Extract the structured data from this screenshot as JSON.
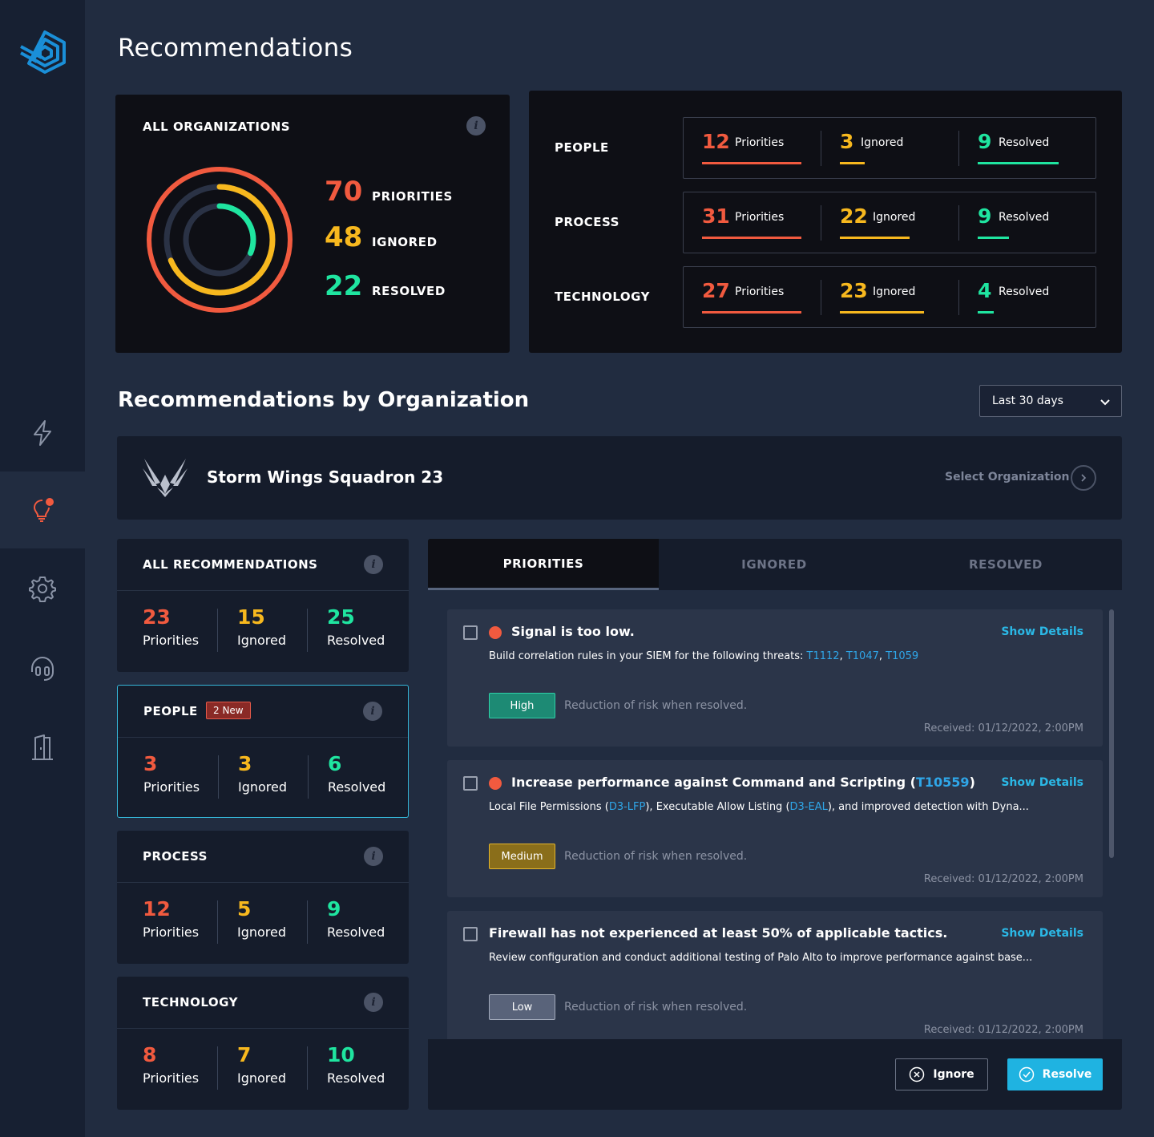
{
  "page": {
    "title": "Recommendations"
  },
  "colors": {
    "priorities": "#f15a3f",
    "ignored": "#f7b81e",
    "resolved": "#1fe5a0",
    "accent": "#1fb3e1"
  },
  "sidebar": {
    "items": [
      {
        "icon": "lightning-icon",
        "active": false
      },
      {
        "icon": "lightbulb-icon",
        "active": true
      },
      {
        "icon": "gear-icon",
        "active": false
      },
      {
        "icon": "headset-icon",
        "active": false
      },
      {
        "icon": "door-exit-icon",
        "active": false
      }
    ]
  },
  "all_orgs": {
    "title": "ALL ORGANIZATIONS",
    "priorities": {
      "value": "70",
      "label": "PRIORITIES"
    },
    "ignored": {
      "value": "48",
      "label": "IGNORED"
    },
    "resolved": {
      "value": "22",
      "label": "RESOLVED"
    }
  },
  "categories": [
    {
      "name": "PEOPLE",
      "priorities": "12",
      "ignored": "3",
      "resolved": "9",
      "p_frac": 1.0,
      "i_frac": 0.25,
      "r_frac": 0.75
    },
    {
      "name": "PROCESS",
      "priorities": "31",
      "ignored": "22",
      "resolved": "9",
      "p_frac": 1.0,
      "i_frac": 0.7,
      "r_frac": 0.29
    },
    {
      "name": "TECHNOLOGY",
      "priorities": "27",
      "ignored": "23",
      "resolved": "4",
      "p_frac": 1.0,
      "i_frac": 0.85,
      "r_frac": 0.15
    }
  ],
  "labels": {
    "priorities": "Priorities",
    "ignored": "Ignored",
    "resolved": "Resolved"
  },
  "section": {
    "title": "Recommendations by Organization"
  },
  "range": {
    "selected": "Last 30 days"
  },
  "organization": {
    "name": "Storm Wings Squadron 23",
    "select_label": "Select Organization"
  },
  "summary_cards": [
    {
      "title": "ALL RECOMMENDATIONS",
      "badge": "",
      "priorities": "23",
      "ignored": "15",
      "resolved": "25"
    },
    {
      "title": "PEOPLE",
      "badge": "2 New",
      "priorities": "3",
      "ignored": "3",
      "resolved": "6"
    },
    {
      "title": "PROCESS",
      "badge": "",
      "priorities": "12",
      "ignored": "5",
      "resolved": "9"
    },
    {
      "title": "TECHNOLOGY",
      "badge": "",
      "priorities": "8",
      "ignored": "7",
      "resolved": "10"
    }
  ],
  "tabs": [
    "PRIORITIES",
    "IGNORED",
    "RESOLVED"
  ],
  "recommendations": [
    {
      "title": "Signal is too low.",
      "show_details": "Show Details",
      "desc_prefix": "Build correlation rules in your SIEM for the following threats: ",
      "links": [
        "T1112",
        "T1047",
        "T1059"
      ],
      "severity": "High",
      "risk": "Reduction of risk when resolved.",
      "received": "Received: 01/12/2022, 2:00PM"
    },
    {
      "title_prefix": "Increase performance against Command and Scripting (",
      "title_link": "T10559",
      "title_suffix": ")",
      "show_details": "Show Details",
      "desc_a": "Local File Permissions (",
      "link_a": "D3-LFP",
      "desc_b": "), Executable Allow Listing (",
      "link_b": "D3-EAL",
      "desc_c": "), and improved detection with Dyna...",
      "severity": "Medium",
      "risk": "Reduction of risk when resolved.",
      "received": "Received: 01/12/2022, 2:00PM"
    },
    {
      "title": "Firewall has not experienced at least 50% of applicable tactics.",
      "show_details": "Show Details",
      "desc": "Review configuration and conduct additional testing of Palo Alto to improve performance against base...",
      "severity": "Low",
      "risk": "Reduction of risk when resolved.",
      "received": "Received: 01/12/2022, 2:00PM"
    }
  ],
  "actions": {
    "ignore": "Ignore",
    "resolve": "Resolve"
  }
}
